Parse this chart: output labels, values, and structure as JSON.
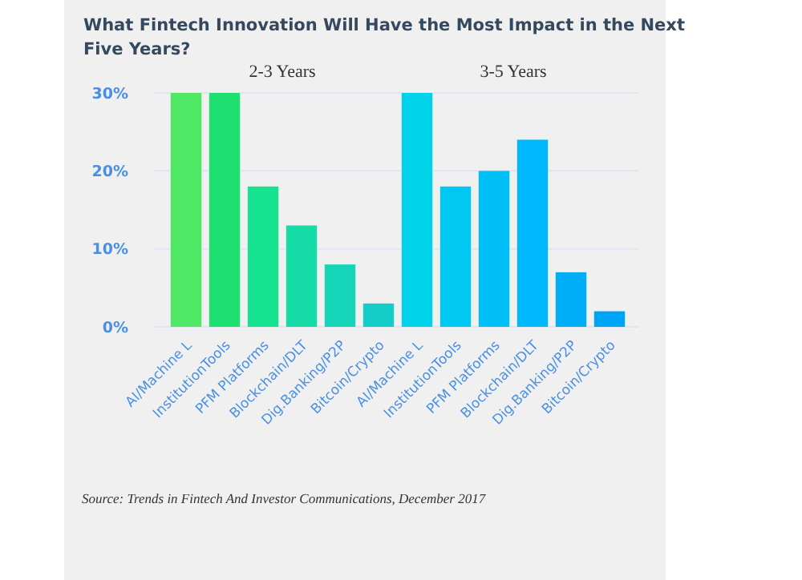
{
  "chart_data": {
    "type": "bar",
    "title": "What Fintech Innovation Will Have the Most Impact in the Next Five Years?",
    "categories": [
      "AI/Machine L",
      "InstitutionTools",
      "PFM Platforms",
      "Blockchain/DLT",
      "Dig.Banking/P2P",
      "Bitcoin/Crypto",
      "AI/Machine L",
      "InstitutionTools",
      "PFM Platforms",
      "Blockchain/DLT",
      "Dig.Banking/P2P",
      "Bitcoin/Crypto"
    ],
    "values": [
      30,
      30,
      18,
      13,
      8,
      3,
      30,
      18,
      20,
      24,
      7,
      2
    ],
    "colors": [
      "#4ee864",
      "#1de070",
      "#16e290",
      "#18dca8",
      "#16d4b8",
      "#14ccc8",
      "#00d2ea",
      "#00c8f2",
      "#00c0f8",
      "#00b8fc",
      "#00aef8",
      "#00a4f4"
    ],
    "ylim": [
      0,
      30
    ],
    "yticks": [
      {
        "value": 0,
        "label": "0%"
      },
      {
        "value": 10,
        "label": "10%"
      },
      {
        "value": 20,
        "label": "20%"
      },
      {
        "value": 30,
        "label": "30%"
      }
    ],
    "grid": "y",
    "annotations": [
      "2-3 Years",
      "3-5 Years",
      "Source: Trends in Fintech And Investor Communications, December 2017"
    ]
  }
}
